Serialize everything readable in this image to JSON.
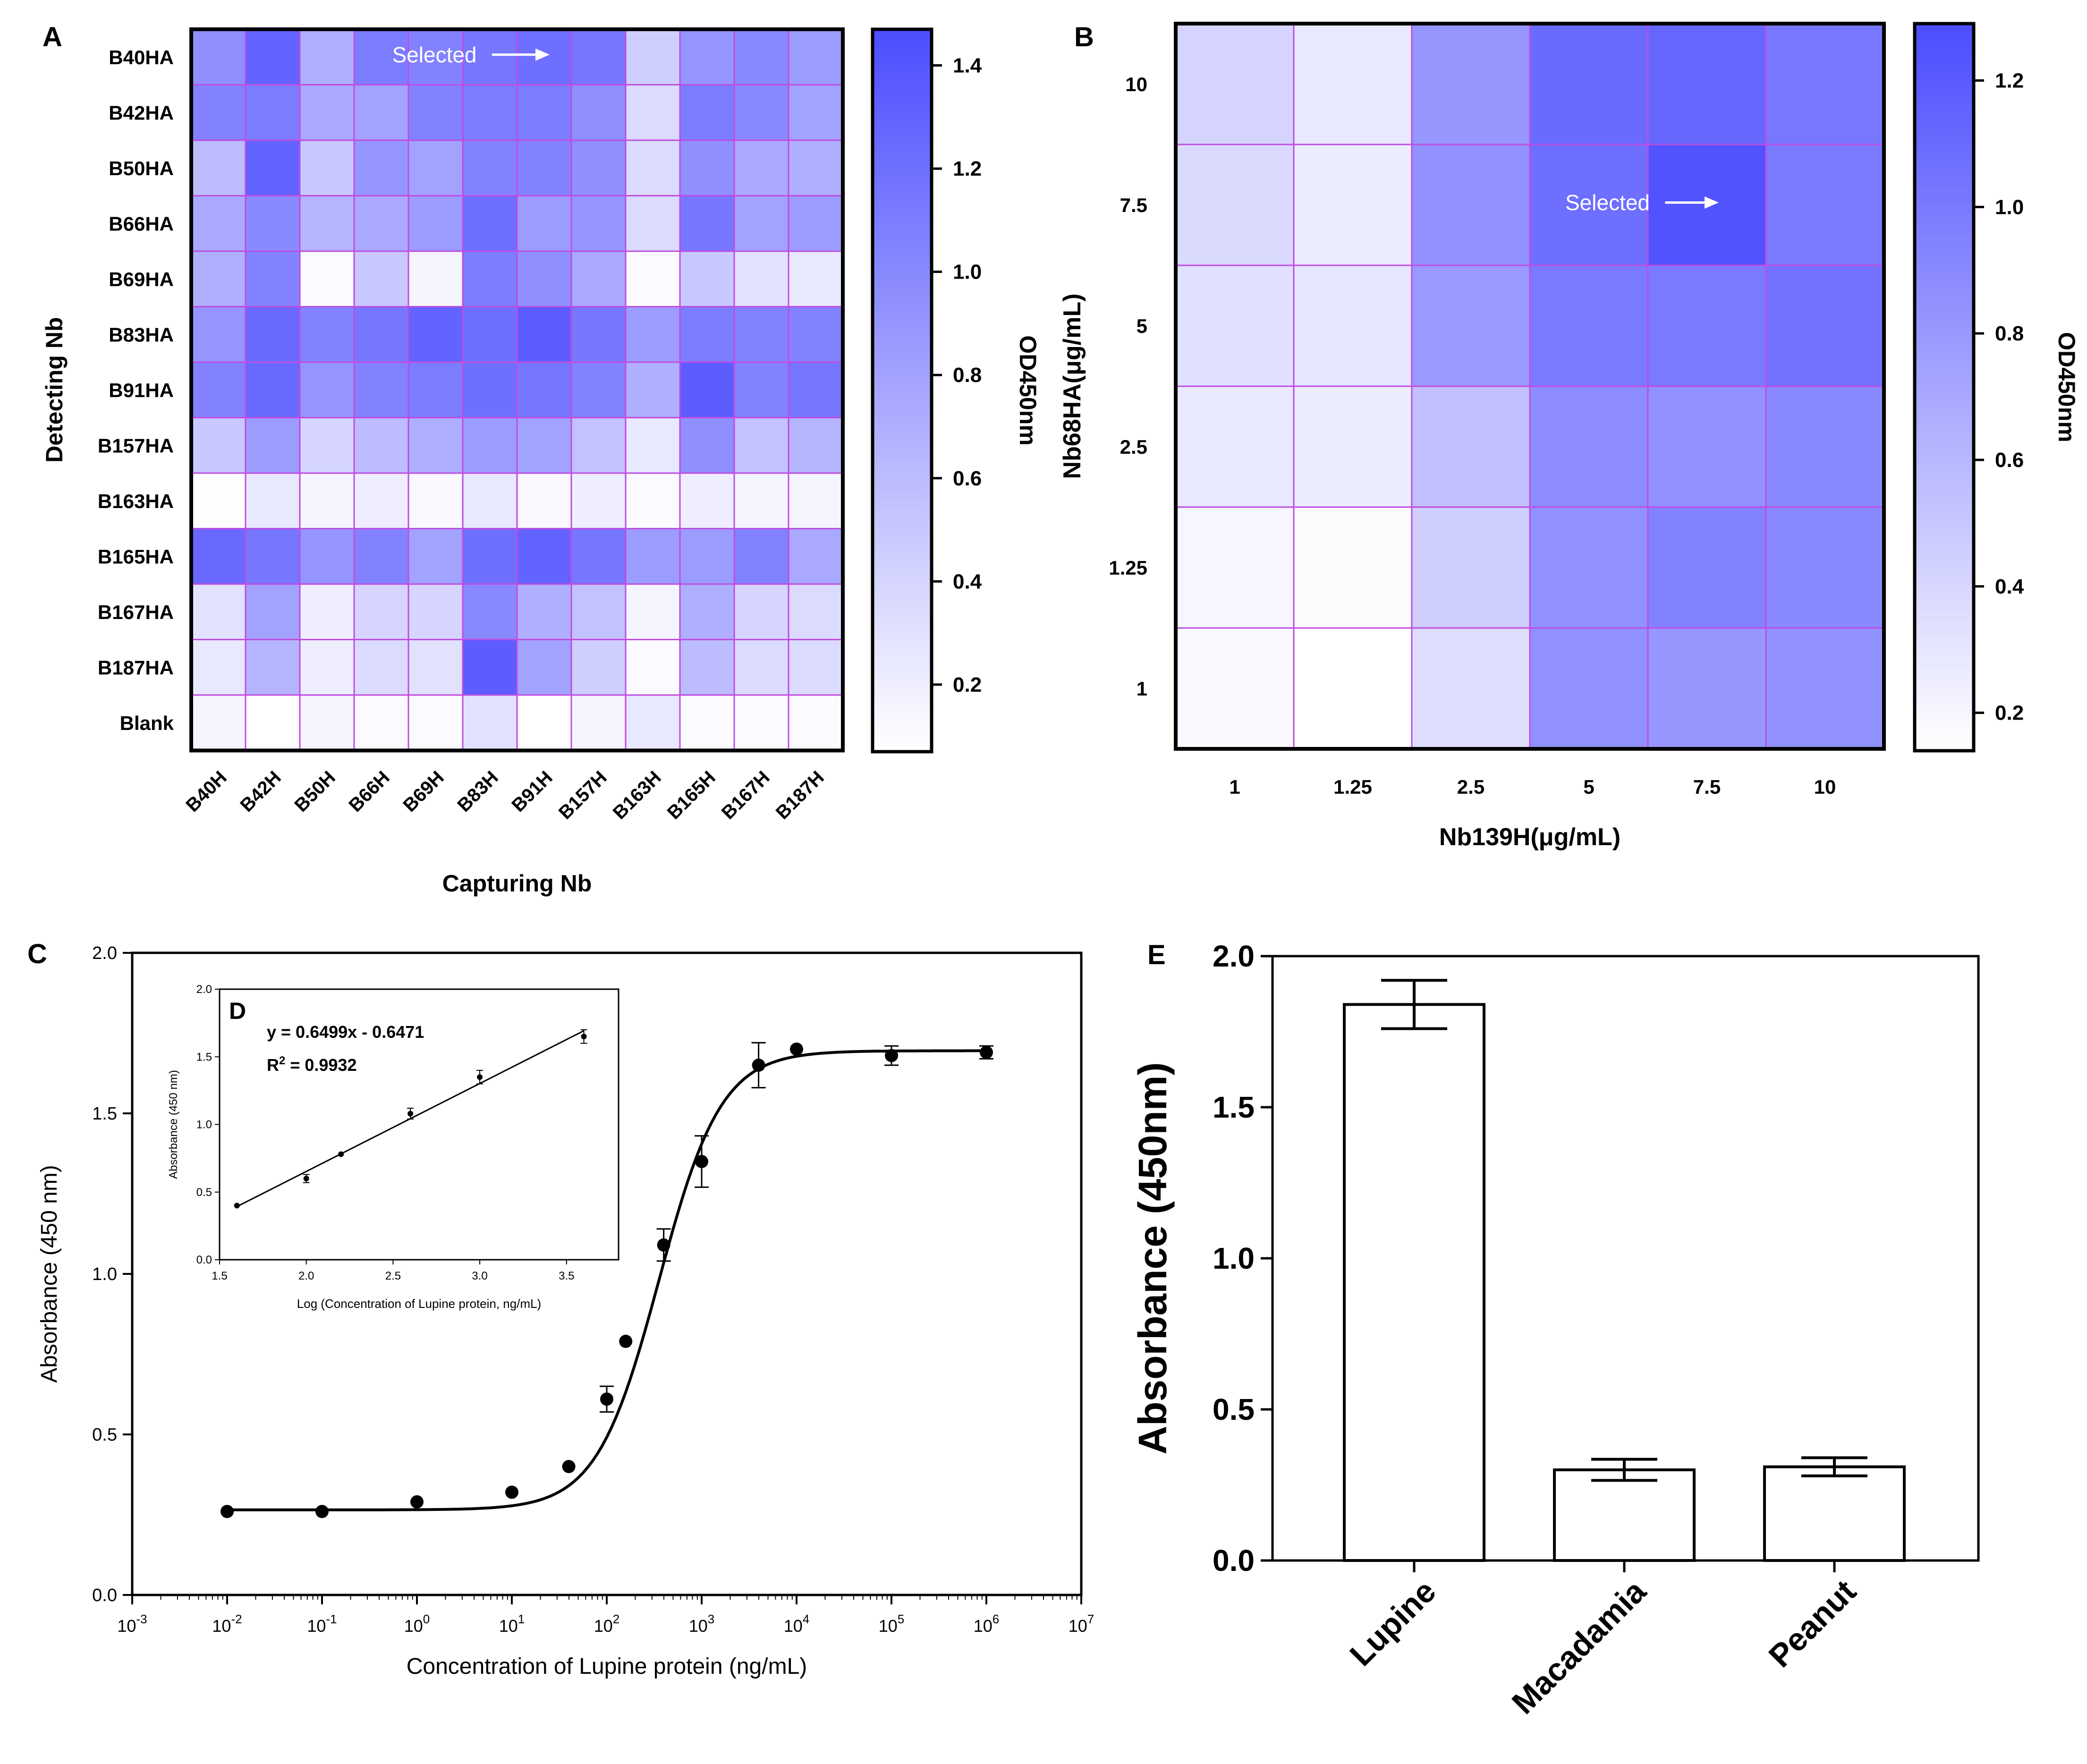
{
  "colors": {
    "heat_low": "#ffffff",
    "heat_high": "#4d4dff",
    "cell_border": "#c04ce0",
    "frame": "#000000"
  },
  "panels": {
    "A": {
      "label": "A"
    },
    "B": {
      "label": "B"
    },
    "C": {
      "label": "C"
    },
    "D": {
      "label": "D"
    },
    "E": {
      "label": "E"
    }
  },
  "chart_data": [
    {
      "id": "A",
      "type": "heatmap",
      "title": "",
      "xlabel": "Capturing Nb",
      "ylabel": "Detecting Nb",
      "columns": [
        "B40H",
        "B42H",
        "B50H",
        "B66H",
        "B69H",
        "B83H",
        "B91H",
        "B157H",
        "B163H",
        "B165H",
        "B167H",
        "B187H"
      ],
      "rows": [
        "B40HA",
        "B42HA",
        "B50HA",
        "B66HA",
        "B69HA",
        "B83HA",
        "B91HA",
        "B157HA",
        "B163HA",
        "B165HA",
        "B167HA",
        "B187HA",
        "Blank"
      ],
      "values": [
        [
          0.95,
          1.3,
          0.7,
          1.1,
          1.05,
          1.15,
          1.2,
          1.15,
          0.45,
          0.9,
          1.0,
          0.85
        ],
        [
          1.05,
          1.1,
          0.75,
          0.8,
          1.05,
          1.1,
          1.1,
          0.95,
          0.35,
          1.1,
          1.0,
          0.8
        ],
        [
          0.6,
          1.3,
          0.5,
          0.9,
          0.8,
          1.05,
          1.05,
          0.95,
          0.35,
          0.95,
          0.75,
          0.7
        ],
        [
          0.75,
          1.0,
          0.65,
          0.75,
          0.85,
          1.2,
          0.85,
          0.9,
          0.35,
          1.15,
          0.8,
          0.85
        ],
        [
          0.7,
          1.05,
          0.1,
          0.5,
          0.15,
          1.1,
          0.95,
          0.75,
          0.1,
          0.5,
          0.3,
          0.25
        ],
        [
          0.9,
          1.25,
          1.05,
          1.15,
          1.3,
          1.2,
          1.35,
          1.15,
          0.85,
          1.1,
          1.05,
          1.05
        ],
        [
          1.05,
          1.25,
          0.9,
          1.05,
          1.1,
          1.2,
          1.15,
          1.05,
          0.7,
          1.35,
          1.05,
          1.15
        ],
        [
          0.5,
          0.85,
          0.4,
          0.6,
          0.7,
          0.85,
          0.8,
          0.55,
          0.25,
          0.95,
          0.55,
          0.65
        ],
        [
          0.08,
          0.25,
          0.15,
          0.2,
          0.12,
          0.25,
          0.12,
          0.2,
          0.1,
          0.2,
          0.15,
          0.15
        ],
        [
          1.25,
          1.15,
          0.9,
          1.05,
          0.8,
          1.2,
          1.3,
          1.15,
          0.85,
          0.85,
          1.05,
          0.75
        ],
        [
          0.3,
          0.8,
          0.2,
          0.4,
          0.4,
          1.0,
          0.7,
          0.55,
          0.15,
          0.7,
          0.4,
          0.35
        ],
        [
          0.25,
          0.65,
          0.2,
          0.35,
          0.3,
          1.35,
          0.8,
          0.45,
          0.1,
          0.6,
          0.35,
          0.35
        ],
        [
          0.15,
          0.05,
          0.15,
          0.1,
          0.1,
          0.3,
          0.02,
          0.15,
          0.25,
          0.1,
          0.1,
          0.1
        ]
      ],
      "annotation": {
        "text": "Selected",
        "row": 0,
        "col_start": 3.7,
        "col_end": 6.6
      },
      "colorbar": {
        "label": "OD450nm",
        "min": 0.07,
        "max": 1.47,
        "ticks": [
          "0.2",
          "0.4",
          "0.6",
          "0.8",
          "1.0",
          "1.2",
          "1.4"
        ]
      }
    },
    {
      "id": "B",
      "type": "heatmap",
      "title": "",
      "xlabel": "Nb139H(μg/mL)",
      "ylabel": "Nb68HA(μg/mL)",
      "columns": [
        "1",
        "1.25",
        "2.5",
        "5",
        "7.5",
        "10"
      ],
      "rows": [
        "10",
        "7.5",
        "5",
        "2.5",
        "1.25",
        "1"
      ],
      "values": [
        [
          0.42,
          0.28,
          0.82,
          1.1,
          1.12,
          1.02
        ],
        [
          0.38,
          0.26,
          0.85,
          1.08,
          1.26,
          1.0
        ],
        [
          0.34,
          0.3,
          0.8,
          1.0,
          1.0,
          1.05
        ],
        [
          0.28,
          0.26,
          0.55,
          0.88,
          0.85,
          0.9
        ],
        [
          0.2,
          0.16,
          0.45,
          0.85,
          0.95,
          0.9
        ],
        [
          0.18,
          0.14,
          0.35,
          0.86,
          0.82,
          0.85
        ]
      ],
      "annotation": {
        "text": "Selected",
        "row": 1,
        "col_start": 3.3,
        "col_end": 4.6
      },
      "colorbar": {
        "label": "OD450nm",
        "min": 0.14,
        "max": 1.29,
        "ticks": [
          "0.2",
          "0.4",
          "0.6",
          "0.8",
          "1.0",
          "1.2"
        ]
      }
    },
    {
      "id": "C",
      "type": "scatter",
      "title": "",
      "xlabel": "Concentration of Lupine protein (ng/mL)",
      "ylabel": "Absorbance (450 nm)",
      "xscale": "log",
      "xlim_exp": [
        -3,
        7
      ],
      "x_tick_exponents": [
        "-3",
        "-2",
        "-1",
        "0",
        "1",
        "2",
        "3",
        "4",
        "5",
        "6",
        "7"
      ],
      "ylim": [
        0,
        2.0
      ],
      "y_ticks": [
        "0.0",
        "0.5",
        "1.0",
        "1.5",
        "2.0"
      ],
      "points_log10x": [
        -2,
        -1,
        0,
        1,
        1.6,
        2,
        2.2,
        2.6,
        3,
        3.6,
        4,
        5,
        6
      ],
      "values": [
        0.26,
        0.26,
        0.29,
        0.32,
        0.4,
        0.61,
        0.79,
        1.09,
        1.35,
        1.65,
        1.7,
        1.68,
        1.69
      ],
      "errors": [
        0.01,
        0.01,
        0.01,
        0.01,
        0.01,
        0.04,
        0.01,
        0.05,
        0.08,
        0.07,
        0.01,
        0.03,
        0.02
      ],
      "fit": {
        "model": "4PL",
        "bottom": 0.265,
        "top": 1.695,
        "log_ec50": 2.55,
        "hill": 1.32
      }
    },
    {
      "id": "D",
      "type": "scatter",
      "title": "",
      "xlabel": "Log (Concentration of Lupine protein, ng/mL)",
      "ylabel": "Absorbance (450 nm)",
      "xlim": [
        1.5,
        3.8
      ],
      "x_ticks": [
        "1.5",
        "2.0",
        "2.5",
        "3.0",
        "3.5"
      ],
      "ylim": [
        0,
        2.0
      ],
      "y_ticks": [
        "0.0",
        "0.5",
        "1.0",
        "1.5",
        "2.0"
      ],
      "x": [
        1.6,
        2.0,
        2.2,
        2.6,
        3.0,
        3.6
      ],
      "values": [
        0.4,
        0.6,
        0.78,
        1.08,
        1.35,
        1.65
      ],
      "errors": [
        0.01,
        0.03,
        0.01,
        0.04,
        0.05,
        0.05
      ],
      "fit": {
        "slope": 0.6499,
        "intercept": -0.6471
      },
      "equation": "y = 0.6499x - 0.6471",
      "r2_prefix": "R",
      "r2_sup": "2",
      "r2_value": " = 0.9932"
    },
    {
      "id": "E",
      "type": "bar",
      "title": "",
      "xlabel": "",
      "ylabel": "Absorbance (450nm)",
      "categories": [
        "Lupine",
        "Macadamia",
        "Peanut"
      ],
      "values": [
        1.84,
        0.3,
        0.31
      ],
      "errors": [
        0.08,
        0.035,
        0.03
      ],
      "ylim": [
        0,
        2.0
      ],
      "y_ticks": [
        "0.0",
        "0.5",
        "1.0",
        "1.5",
        "2.0"
      ]
    }
  ]
}
